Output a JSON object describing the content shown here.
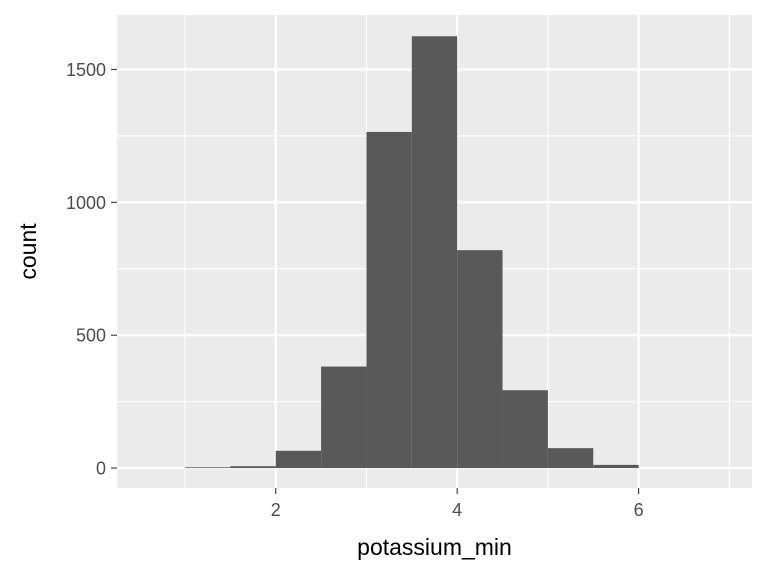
{
  "chart_data": {
    "type": "histogram",
    "title": "",
    "xlabel": "potassium_min",
    "ylabel": "count",
    "xlim": [
      0.25,
      7.25
    ],
    "ylim": [
      -75,
      1705
    ],
    "x_ticks": [
      2,
      4,
      6
    ],
    "x_tick_labels": [
      "2",
      "4",
      "6"
    ],
    "x_minor_ticks": [
      1,
      3,
      5,
      7
    ],
    "y_ticks": [
      0,
      500,
      1000,
      1500
    ],
    "y_tick_labels": [
      "0",
      "500",
      "1000",
      "1500"
    ],
    "y_minor_ticks": [
      250,
      750,
      1250
    ],
    "bin_width": 0.5,
    "bins": [
      {
        "x0": 1.0,
        "x1": 1.5,
        "count": 3
      },
      {
        "x0": 1.5,
        "x1": 2.0,
        "count": 7
      },
      {
        "x0": 2.0,
        "x1": 2.5,
        "count": 65
      },
      {
        "x0": 2.5,
        "x1": 3.0,
        "count": 382
      },
      {
        "x0": 3.0,
        "x1": 3.5,
        "count": 1265
      },
      {
        "x0": 3.5,
        "x1": 4.0,
        "count": 1625
      },
      {
        "x0": 4.0,
        "x1": 4.5,
        "count": 820
      },
      {
        "x0": 4.5,
        "x1": 5.0,
        "count": 293
      },
      {
        "x0": 5.0,
        "x1": 5.5,
        "count": 75
      },
      {
        "x0": 5.5,
        "x1": 6.0,
        "count": 12
      }
    ],
    "grid": true,
    "colors": {
      "panel": "#ebebeb",
      "grid": "#ffffff",
      "bar": "#595959",
      "tick_text": "#4d4d4d",
      "tick_mark": "#333333"
    }
  }
}
